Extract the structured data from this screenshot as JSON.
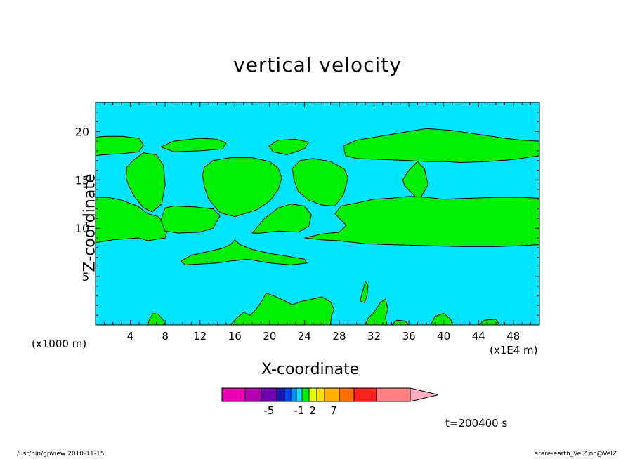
{
  "chart_data": {
    "type": "contour",
    "title": "vertical velocity",
    "xlabel": "X-coordinate",
    "ylabel": "Z-coordinate",
    "x_unit": "(x1000 m)",
    "y_unit": "(x1E4 m)",
    "xlim": [
      0,
      51
    ],
    "ylim": [
      0,
      23
    ],
    "x_ticks": [
      "4",
      "8",
      "12",
      "16",
      "20",
      "24",
      "28",
      "32",
      "36",
      "40",
      "44",
      "48"
    ],
    "y_ticks": [
      "5",
      "10",
      "15",
      "20"
    ],
    "background_color": "#00e5ff",
    "fill_color": "#00ee00",
    "regions": [
      {
        "name": "upper-band-left",
        "points": [
          [
            0,
            17.5
          ],
          [
            1,
            17.6
          ],
          [
            3,
            17.7
          ],
          [
            5,
            17.9
          ],
          [
            5.5,
            18.6
          ],
          [
            5,
            19.3
          ],
          [
            3,
            19.5
          ],
          [
            1,
            19.5
          ],
          [
            0,
            19.4
          ]
        ]
      },
      {
        "name": "upper-band-right",
        "points": [
          [
            28.5,
            18.5
          ],
          [
            30,
            19.1
          ],
          [
            32,
            19.4
          ],
          [
            34,
            19.7
          ],
          [
            36,
            20
          ],
          [
            38,
            20.3
          ],
          [
            41,
            20.1
          ],
          [
            44,
            19.7
          ],
          [
            47,
            19.3
          ],
          [
            49,
            19.1
          ],
          [
            51,
            19
          ],
          [
            51,
            17.5
          ],
          [
            48,
            17.1
          ],
          [
            45,
            16.9
          ],
          [
            42,
            16.8
          ],
          [
            40,
            16.9
          ],
          [
            38,
            16.9
          ],
          [
            36,
            17
          ],
          [
            33,
            17.1
          ],
          [
            30,
            17.2
          ],
          [
            28.7,
            17.5
          ]
        ]
      },
      {
        "name": "upper-blob-8",
        "points": [
          [
            7.5,
            18.4
          ],
          [
            9,
            19
          ],
          [
            12,
            19.3
          ],
          [
            14,
            19.2
          ],
          [
            15,
            18.8
          ],
          [
            14.6,
            18.2
          ],
          [
            12,
            18
          ],
          [
            9,
            17.9
          ]
        ]
      },
      {
        "name": "upper-blob-22",
        "points": [
          [
            19.9,
            18.5
          ],
          [
            21,
            19.1
          ],
          [
            23,
            19.2
          ],
          [
            24.5,
            18.9
          ],
          [
            24,
            18.2
          ],
          [
            22,
            17.6
          ],
          [
            20.4,
            17.9
          ]
        ]
      },
      {
        "name": "blob-6",
        "points": [
          [
            3.5,
            15.2
          ],
          [
            3.6,
            16.3
          ],
          [
            4.3,
            17
          ],
          [
            5.5,
            17.8
          ],
          [
            7,
            17.6
          ],
          [
            7.8,
            16.5
          ],
          [
            8,
            14.5
          ],
          [
            7.6,
            12.5
          ],
          [
            6.5,
            11.7
          ],
          [
            5.5,
            12.1
          ],
          [
            4.3,
            13.5
          ],
          [
            3.8,
            14.4
          ]
        ]
      },
      {
        "name": "blob-16",
        "points": [
          [
            12.3,
            15.5
          ],
          [
            12.5,
            16.3
          ],
          [
            13.5,
            17
          ],
          [
            15.5,
            17.3
          ],
          [
            18,
            17.3
          ],
          [
            20,
            16.9
          ],
          [
            21,
            16.2
          ],
          [
            21.4,
            15.2
          ],
          [
            21,
            14
          ],
          [
            20,
            12.8
          ],
          [
            18.5,
            11.9
          ],
          [
            16,
            11.2
          ],
          [
            14.3,
            11.6
          ],
          [
            13,
            13
          ],
          [
            12.5,
            14.3
          ]
        ]
      },
      {
        "name": "blob-25",
        "points": [
          [
            22.6,
            16.2
          ],
          [
            23.5,
            17
          ],
          [
            25,
            17.2
          ],
          [
            27,
            16.9
          ],
          [
            28.6,
            16.1
          ],
          [
            29,
            15.2
          ],
          [
            28.5,
            13.5
          ],
          [
            27.5,
            12.3
          ],
          [
            26,
            12.4
          ],
          [
            24.5,
            12.9
          ],
          [
            23.3,
            13.8
          ],
          [
            22.8,
            15
          ]
        ]
      },
      {
        "name": "blob-37",
        "points": [
          [
            35.3,
            15
          ],
          [
            36,
            16
          ],
          [
            37,
            16.9
          ],
          [
            37.8,
            16.1
          ],
          [
            38.2,
            14.5
          ],
          [
            37.5,
            13.4
          ],
          [
            37,
            12.2
          ],
          [
            36.6,
            13.4
          ],
          [
            35.5,
            14.4
          ]
        ]
      },
      {
        "name": "middle-band-left",
        "points": [
          [
            0,
            8.5
          ],
          [
            2,
            8.8
          ],
          [
            5,
            9
          ],
          [
            6,
            8.7
          ],
          [
            8,
            9
          ],
          [
            8.3,
            10
          ],
          [
            7.2,
            11.2
          ],
          [
            6,
            11.5
          ],
          [
            4.8,
            12.3
          ],
          [
            3,
            12.9
          ],
          [
            1.5,
            13.2
          ],
          [
            0,
            13.2
          ]
        ]
      },
      {
        "name": "middle-band-right",
        "points": [
          [
            24,
            9
          ],
          [
            26,
            8.8
          ],
          [
            28,
            8.7
          ],
          [
            31,
            8.4
          ],
          [
            34,
            8.3
          ],
          [
            38,
            8.2
          ],
          [
            42,
            8.1
          ],
          [
            46,
            8.1
          ],
          [
            49,
            8.2
          ],
          [
            51,
            8.3
          ],
          [
            51,
            13.1
          ],
          [
            49,
            13.2
          ],
          [
            46,
            13.2
          ],
          [
            43,
            13.1
          ],
          [
            40,
            13
          ],
          [
            38,
            13.2
          ],
          [
            36,
            13.3
          ],
          [
            34,
            13.1
          ],
          [
            32,
            13
          ],
          [
            30,
            12.6
          ],
          [
            28.2,
            12.3
          ],
          [
            27.5,
            11.5
          ],
          [
            28.8,
            10.3
          ],
          [
            28,
            9.6
          ],
          [
            26,
            9.4
          ]
        ]
      },
      {
        "name": "mid-blob-10",
        "points": [
          [
            7.5,
            10.8
          ],
          [
            8,
            12.1
          ],
          [
            9,
            12.3
          ],
          [
            11.5,
            12.2
          ],
          [
            13.5,
            12
          ],
          [
            14.3,
            11.3
          ],
          [
            13.5,
            10
          ],
          [
            12,
            9.6
          ],
          [
            9.5,
            9.5
          ],
          [
            8,
            9.7
          ]
        ]
      },
      {
        "name": "mid-blob-21",
        "points": [
          [
            18,
            9.5
          ],
          [
            19.4,
            11
          ],
          [
            21,
            12.1
          ],
          [
            22.5,
            12.5
          ],
          [
            24,
            12.3
          ],
          [
            24.8,
            11.4
          ],
          [
            24.5,
            10.2
          ],
          [
            23.3,
            9.6
          ],
          [
            21,
            9.7
          ],
          [
            19,
            9.5
          ]
        ]
      },
      {
        "name": "lower-ridge",
        "points": [
          [
            9.8,
            6.6
          ],
          [
            11,
            7.2
          ],
          [
            13,
            7.6
          ],
          [
            14.5,
            7.9
          ],
          [
            15.5,
            8.3
          ],
          [
            16,
            8.8
          ],
          [
            16.6,
            8.3
          ],
          [
            18,
            7.8
          ],
          [
            20,
            7.4
          ],
          [
            22,
            7.1
          ],
          [
            24,
            6.8
          ],
          [
            24.3,
            6.4
          ],
          [
            22.5,
            6.2
          ],
          [
            20,
            6.4
          ],
          [
            17.5,
            6.8
          ],
          [
            15.5,
            6.6
          ],
          [
            14,
            6.4
          ],
          [
            12,
            6.3
          ],
          [
            10.3,
            6.2
          ]
        ]
      },
      {
        "name": "bottom-blob-7",
        "points": [
          [
            6,
            0
          ],
          [
            6.2,
            0.6
          ],
          [
            6.6,
            1.2
          ],
          [
            7.2,
            1.1
          ],
          [
            7.8,
            0.5
          ],
          [
            8,
            0
          ]
        ]
      },
      {
        "name": "bottom-blob-16",
        "points": [
          [
            15.5,
            0
          ],
          [
            16.2,
            0.7
          ],
          [
            17,
            1.3
          ],
          [
            17.8,
            1
          ],
          [
            18.4,
            1.6
          ],
          [
            19,
            2.3
          ],
          [
            19.6,
            3.3
          ],
          [
            20.5,
            3
          ],
          [
            21.5,
            2.6
          ],
          [
            22.6,
            2.1
          ],
          [
            23.5,
            2.4
          ],
          [
            24.5,
            2.6
          ],
          [
            26,
            2.9
          ],
          [
            27,
            2.4
          ],
          [
            27.4,
            1.6
          ],
          [
            27.1,
            0.9
          ],
          [
            27,
            0
          ]
        ]
      },
      {
        "name": "bottom-blob-32",
        "points": [
          [
            31,
            0
          ],
          [
            31.3,
            0.7
          ],
          [
            32,
            1.3
          ],
          [
            32.7,
            2.3
          ],
          [
            33.3,
            2.7
          ],
          [
            33.6,
            1.6
          ],
          [
            33.3,
            0.8
          ],
          [
            33.5,
            0
          ]
        ]
      },
      {
        "name": "bottom-blob-30",
        "points": [
          [
            30.4,
            2.5
          ],
          [
            30.7,
            3.5
          ],
          [
            31,
            4.5
          ],
          [
            31.3,
            4.1
          ],
          [
            31.2,
            3.1
          ],
          [
            30.9,
            2.3
          ]
        ]
      },
      {
        "name": "bottom-blob-40",
        "points": [
          [
            38.5,
            0
          ],
          [
            39,
            0.9
          ],
          [
            40,
            1.2
          ],
          [
            40.8,
            0.6
          ],
          [
            41,
            0
          ]
        ]
      },
      {
        "name": "bottom-blob-46",
        "points": [
          [
            44,
            0
          ],
          [
            44.7,
            0.5
          ],
          [
            46,
            0.6
          ],
          [
            46.4,
            0
          ]
        ]
      },
      {
        "name": "bottom-blob-35",
        "points": [
          [
            34,
            0
          ],
          [
            34.6,
            0.5
          ],
          [
            35.6,
            0.4
          ],
          [
            36,
            0
          ]
        ]
      }
    ],
    "colorbar": {
      "colors": [
        "#e600b0",
        "#b000b0",
        "#7000b0",
        "#1a1ab0",
        "#0044ff",
        "#0090ff",
        "#00e5ff",
        "#00ee00",
        "#e0ff00",
        "#ffe000",
        "#ffb000",
        "#ff7000",
        "#ff2020",
        "#ff8080"
      ],
      "extend_color": "#ffb0c0",
      "labels": [
        "-5",
        "-1",
        "2",
        "7"
      ]
    },
    "annotation": "t=200400 s"
  },
  "footer": {
    "left": "/usr/bin/gpview  2010-11-15",
    "right": "arare-earth_VelZ.nc@VelZ"
  }
}
